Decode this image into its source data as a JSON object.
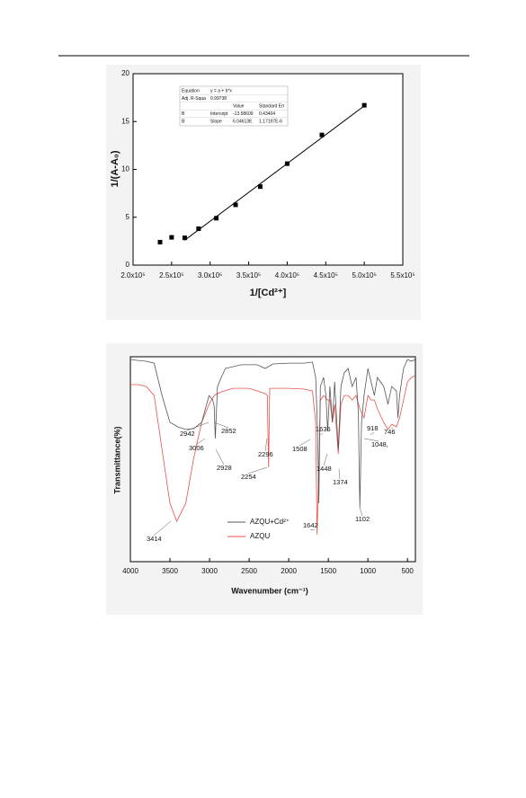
{
  "chart_data": [
    {
      "type": "scatter",
      "xlabel": "1/[Cd²⁺]",
      "ylabel": "1/(A-A₀)",
      "xlim": [
        200000,
        550000
      ],
      "xticks": [
        {
          "value": 200000,
          "label": "2.0x10⁵"
        },
        {
          "value": 250000,
          "label": "2.5x10⁵"
        },
        {
          "value": 300000,
          "label": "3.0x10⁵"
        },
        {
          "value": 350000,
          "label": "3.5x10⁵"
        },
        {
          "value": 400000,
          "label": "4.0x10⁵"
        },
        {
          "value": 450000,
          "label": "4.5x10⁵"
        },
        {
          "value": 500000,
          "label": "5.0x10⁵"
        },
        {
          "value": 550000,
          "label": "5.5x10⁵"
        }
      ],
      "ylim": [
        0,
        20
      ],
      "yticks": [
        0,
        5,
        10,
        15,
        20
      ],
      "color": "#000000",
      "points": {
        "x": [
          235000,
          250000,
          267000,
          285000,
          308000,
          333000,
          365000,
          400000,
          445000,
          500000
        ],
        "values": [
          2.4,
          2.9,
          2.85,
          3.8,
          4.9,
          6.3,
          8.2,
          10.6,
          13.6,
          16.7
        ]
      },
      "fit_line": {
        "x": [
          267000,
          500000
        ],
        "values": [
          2.6,
          16.64
        ]
      },
      "inset_table": {
        "rows": [
          [
            "Equation",
            "y = a + b*x"
          ],
          [
            "Adj. R-Squa",
            "0.99738"
          ],
          [
            "Value",
            "Standard Err"
          ],
          [
            "B",
            "Intercept",
            "-13.58609",
            "0.43404"
          ],
          [
            "B",
            "Slope",
            "6.04613E",
            "1.17197E-6"
          ]
        ]
      }
    },
    {
      "type": "line",
      "xlabel": "Wavenumber (cm⁻¹)",
      "ylabel": "Transmittance(%)",
      "xlim": [
        4000,
        400
      ],
      "xticks": [
        4000,
        3500,
        3000,
        2500,
        2000,
        1500,
        1000,
        500
      ],
      "ylim": [
        0,
        100
      ],
      "series": [
        {
          "name": "AZQU+Cd²⁺",
          "color": "#555555",
          "x": [
            4000,
            3900,
            3800,
            3700,
            3600,
            3500,
            3400,
            3300,
            3200,
            3100,
            3006,
            2960,
            2942,
            2928,
            2900,
            2852,
            2800,
            2600,
            2400,
            2296,
            2200,
            2000,
            1800,
            1700,
            1660,
            1636,
            1620,
            1600,
            1560,
            1530,
            1508,
            1480,
            1448,
            1420,
            1374,
            1340,
            1300,
            1250,
            1200,
            1150,
            1120,
            1102,
            1080,
            1048,
            1000,
            960,
            918,
            880,
            800,
            746,
            700,
            640,
            620,
            600,
            550,
            500,
            450,
            400
          ],
          "values": [
            98.7,
            98.2,
            97.8,
            96.9,
            81.1,
            68.0,
            65.8,
            64.5,
            64.9,
            68.0,
            81.1,
            78.9,
            75.9,
            60.1,
            85.5,
            89.9,
            94.3,
            96.1,
            96.1,
            94.3,
            96.5,
            96.9,
            96.9,
            97.4,
            89.9,
            63.6,
            28.5,
            85.5,
            89.9,
            81.1,
            63.6,
            85.5,
            68.0,
            87.7,
            54.8,
            85.5,
            92.1,
            94.3,
            85.5,
            89.9,
            72.4,
            26.3,
            68.0,
            81.1,
            94.3,
            87.7,
            81.1,
            89.9,
            85.5,
            76.8,
            85.5,
            83.3,
            70.2,
            81.1,
            94.3,
            98.7,
            97.8,
            98.7
          ]
        },
        {
          "name": "AZQU",
          "color": "#e8504a",
          "x": [
            4000,
            3900,
            3800,
            3700,
            3600,
            3500,
            3414,
            3300,
            3200,
            3100,
            3006,
            2942,
            2852,
            2700,
            2500,
            2296,
            2270,
            2254,
            2240,
            2000,
            1800,
            1700,
            1660,
            1642,
            1620,
            1600,
            1560,
            1508,
            1480,
            1448,
            1420,
            1374,
            1340,
            1300,
            1250,
            1200,
            1150,
            1102,
            1048,
            1000,
            960,
            918,
            880,
            800,
            746,
            700,
            640,
            600,
            550,
            500,
            450,
            400
          ],
          "values": [
            86.4,
            86.4,
            85.5,
            81.1,
            54.8,
            28.5,
            19.7,
            28.5,
            50.4,
            68.0,
            76.8,
            81.1,
            82.9,
            84.6,
            84.6,
            82.0,
            81.1,
            46.1,
            84.6,
            84.6,
            84.2,
            83.3,
            68.0,
            13.2,
            46.1,
            78.9,
            81.1,
            78.9,
            78.9,
            68.0,
            76.8,
            52.6,
            76.8,
            81.1,
            81.1,
            78.9,
            81.1,
            74.6,
            70.2,
            81.1,
            78.9,
            78.9,
            74.6,
            68.0,
            64.5,
            67.1,
            65.8,
            70.2,
            78.9,
            87.7,
            89.9,
            90.8
          ]
        }
      ],
      "annotations": [
        "2942",
        "2852",
        "3006",
        "2928",
        "2296",
        "2254",
        "1636",
        "1508",
        "1448",
        "1374",
        "918",
        "746",
        "1048,",
        "1642",
        "1102",
        "3414"
      ]
    }
  ]
}
